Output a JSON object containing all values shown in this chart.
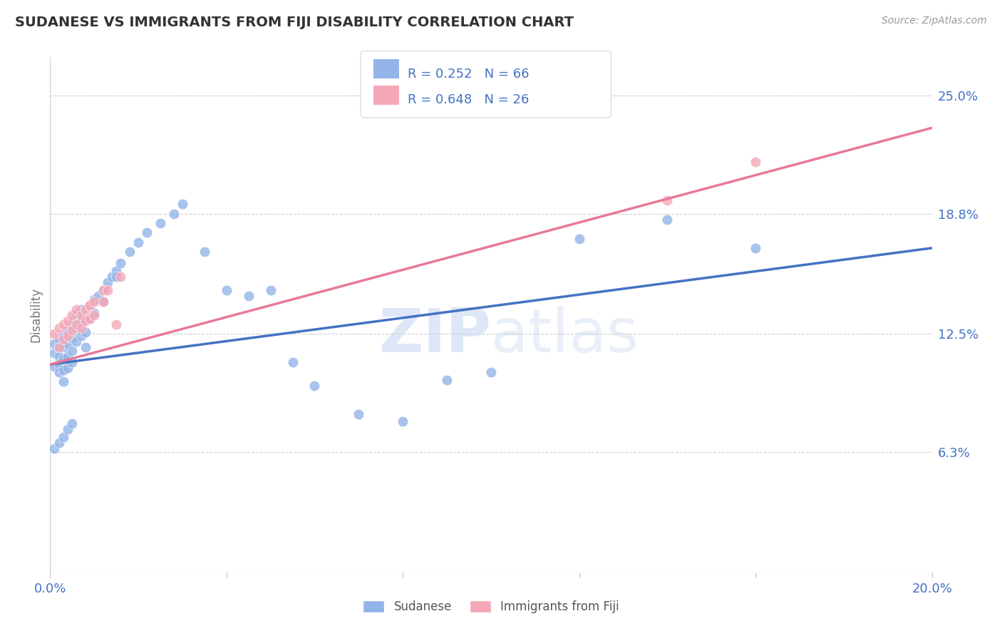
{
  "title": "SUDANESE VS IMMIGRANTS FROM FIJI DISABILITY CORRELATION CHART",
  "source_text": "Source: ZipAtlas.com",
  "ylabel": "Disability",
  "xlim": [
    0.0,
    0.2
  ],
  "ylim": [
    0.0,
    0.27
  ],
  "ytick_labels": [
    "6.3%",
    "12.5%",
    "18.8%",
    "25.0%"
  ],
  "ytick_values": [
    0.063,
    0.125,
    0.188,
    0.25
  ],
  "sudanese_R": 0.252,
  "sudanese_N": 66,
  "fiji_R": 0.648,
  "fiji_N": 26,
  "sudanese_color": "#92b4e8",
  "fiji_color": "#f4a8b8",
  "line_sudanese_color": "#4472c4",
  "line_fiji_color": "#e87a96",
  "title_color": "#333333",
  "label_color": "#4472c4",
  "watermark_color": "#ccd9f0",
  "background_color": "#ffffff",
  "grid_color": "#cccccc",
  "legend_border_color": "#dddddd",
  "sudanese_x": [
    0.001,
    0.001,
    0.001,
    0.002,
    0.002,
    0.002,
    0.002,
    0.002,
    0.003,
    0.003,
    0.003,
    0.003,
    0.003,
    0.004,
    0.004,
    0.004,
    0.004,
    0.005,
    0.005,
    0.005,
    0.005,
    0.006,
    0.006,
    0.006,
    0.007,
    0.007,
    0.007,
    0.008,
    0.008,
    0.008,
    0.009,
    0.009,
    0.01,
    0.01,
    0.011,
    0.012,
    0.012,
    0.013,
    0.014,
    0.015,
    0.015,
    0.016,
    0.018,
    0.02,
    0.022,
    0.025,
    0.028,
    0.03,
    0.035,
    0.04,
    0.045,
    0.05,
    0.055,
    0.06,
    0.07,
    0.08,
    0.09,
    0.1,
    0.12,
    0.14,
    0.16,
    0.001,
    0.002,
    0.003,
    0.004,
    0.005
  ],
  "sudanese_y": [
    0.115,
    0.12,
    0.108,
    0.122,
    0.118,
    0.113,
    0.109,
    0.105,
    0.124,
    0.118,
    0.112,
    0.106,
    0.1,
    0.127,
    0.12,
    0.113,
    0.107,
    0.13,
    0.123,
    0.116,
    0.11,
    0.135,
    0.128,
    0.121,
    0.138,
    0.131,
    0.124,
    0.133,
    0.126,
    0.118,
    0.14,
    0.133,
    0.143,
    0.136,
    0.145,
    0.148,
    0.142,
    0.152,
    0.155,
    0.158,
    0.155,
    0.162,
    0.168,
    0.173,
    0.178,
    0.183,
    0.188,
    0.193,
    0.168,
    0.148,
    0.145,
    0.148,
    0.11,
    0.098,
    0.083,
    0.079,
    0.101,
    0.105,
    0.175,
    0.185,
    0.17,
    0.065,
    0.068,
    0.071,
    0.075,
    0.078
  ],
  "fiji_x": [
    0.001,
    0.002,
    0.002,
    0.003,
    0.003,
    0.004,
    0.004,
    0.005,
    0.005,
    0.006,
    0.006,
    0.007,
    0.007,
    0.008,
    0.008,
    0.009,
    0.009,
    0.01,
    0.01,
    0.012,
    0.012,
    0.013,
    0.015,
    0.016,
    0.16,
    0.14
  ],
  "fiji_y": [
    0.125,
    0.128,
    0.118,
    0.13,
    0.122,
    0.132,
    0.124,
    0.135,
    0.127,
    0.138,
    0.13,
    0.135,
    0.128,
    0.138,
    0.132,
    0.14,
    0.133,
    0.142,
    0.135,
    0.148,
    0.142,
    0.148,
    0.13,
    0.155,
    0.215,
    0.195
  ],
  "line_s_x0": 0.0,
  "line_s_y0": 0.109,
  "line_s_x1": 0.2,
  "line_s_y1": 0.17,
  "line_f_x0": 0.0,
  "line_f_y0": 0.109,
  "line_f_x1": 0.2,
  "line_f_y1": 0.233
}
